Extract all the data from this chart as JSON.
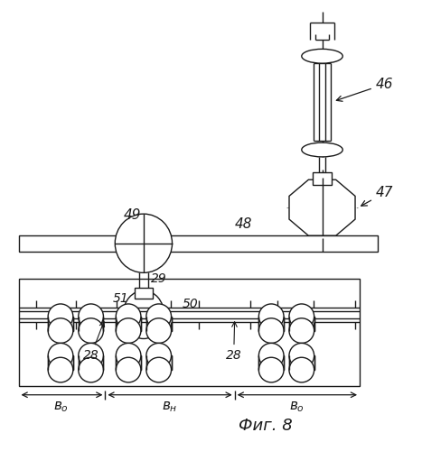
{
  "bg_color": "#ffffff",
  "line_color": "#1a1a1a",
  "lw": 1.0,
  "fig_caption": "Фиг. 8"
}
